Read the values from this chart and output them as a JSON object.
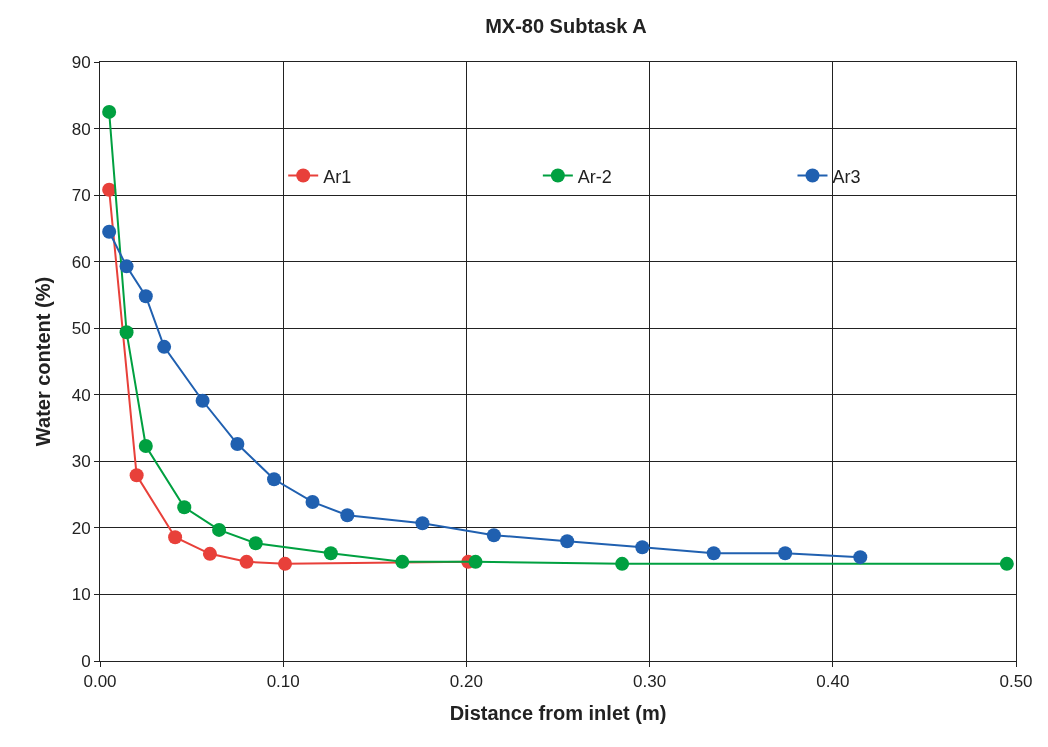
{
  "chart_data": {
    "type": "line",
    "title": "MX-80 Subtask A",
    "xlabel": "Distance from inlet (m)",
    "ylabel": "Water content (%)",
    "xlim": [
      0,
      0.5
    ],
    "xticks": [
      {
        "value": 0,
        "label": "0.00"
      },
      {
        "value": 0.1,
        "label": "0.10"
      },
      {
        "value": 0.2,
        "label": "0.20"
      },
      {
        "value": 0.3,
        "label": "0.30"
      },
      {
        "value": 0.4,
        "label": "0.40"
      },
      {
        "value": 0.5,
        "label": "0.50"
      }
    ],
    "ylim": [
      0,
      90
    ],
    "yticks": [
      0,
      10,
      20,
      30,
      40,
      50,
      60,
      70,
      80,
      90
    ],
    "grid": true,
    "legend": "top",
    "marker": "circle",
    "line_style": "solid",
    "series": [
      {
        "name": "Ar1",
        "color": "#e8403a",
        "x": [
          0.005,
          0.02,
          0.041,
          0.06,
          0.08,
          0.101,
          0.201
        ],
        "values": [
          70.8,
          27.9,
          18.6,
          16.1,
          14.9,
          14.6,
          14.9
        ]
      },
      {
        "name": "Ar-2",
        "color": "#00a040",
        "x": [
          0.005,
          0.0145,
          0.025,
          0.046,
          0.065,
          0.085,
          0.126,
          0.165,
          0.205,
          0.285,
          0.495
        ],
        "values": [
          82.5,
          49.4,
          32.3,
          23.1,
          19.7,
          17.7,
          16.2,
          14.9,
          14.9,
          14.6,
          14.6
        ]
      },
      {
        "name": "Ar3",
        "color": "#2060b0",
        "x": [
          0.005,
          0.0145,
          0.025,
          0.035,
          0.056,
          0.075,
          0.095,
          0.116,
          0.135,
          0.176,
          0.215,
          0.255,
          0.296,
          0.335,
          0.374,
          0.415
        ],
        "values": [
          64.5,
          59.3,
          54.8,
          47.2,
          39.1,
          32.6,
          27.3,
          23.9,
          21.9,
          20.7,
          18.9,
          18.0,
          17.1,
          16.2,
          16.2,
          15.6
        ]
      }
    ]
  }
}
